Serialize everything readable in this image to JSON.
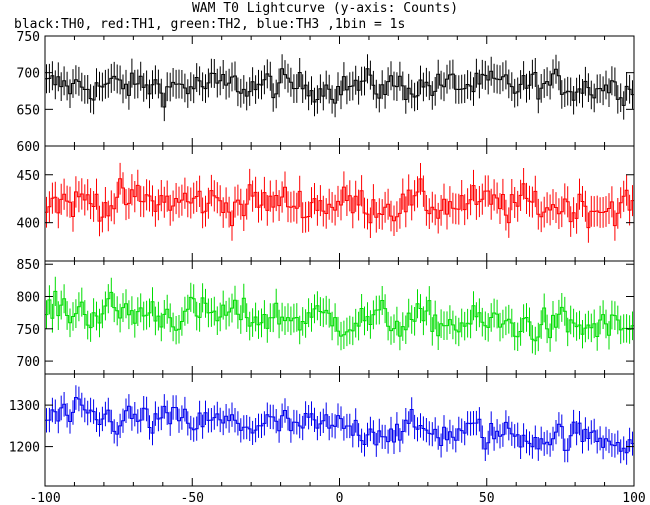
{
  "chart_data": {
    "type": "line",
    "title": "WAM T0 Lightcurve (y-axis: Counts)",
    "subtitle": "black:TH0, red:TH1, green:TH2, blue:TH3 ,1bin = 1s",
    "xlim": [
      -100,
      100
    ],
    "x_ticks": [
      -100,
      -50,
      0,
      50,
      100
    ],
    "bin_seconds": 1,
    "grid": false,
    "panels": [
      {
        "name": "TH0",
        "color": "#000000",
        "ylim": [
          600,
          750
        ],
        "y_ticks": [
          600,
          650,
          700,
          750
        ],
        "mean": 682,
        "spread": 15,
        "trend": 0
      },
      {
        "name": "TH1",
        "color": "#ff0000",
        "ylim": [
          360,
          480
        ],
        "y_ticks": [
          400,
          450
        ],
        "mean": 420,
        "spread": 14,
        "trend": -6
      },
      {
        "name": "TH2",
        "color": "#00dd00",
        "ylim": [
          680,
          855
        ],
        "y_ticks": [
          700,
          750,
          800,
          850
        ],
        "mean": 765,
        "spread": 20,
        "trend": -30
      },
      {
        "name": "TH3",
        "color": "#0000ee",
        "ylim": [
          1105,
          1375
        ],
        "y_ticks": [
          1200,
          1300
        ],
        "mean": 1245,
        "spread": 28,
        "trend": -55
      }
    ]
  }
}
